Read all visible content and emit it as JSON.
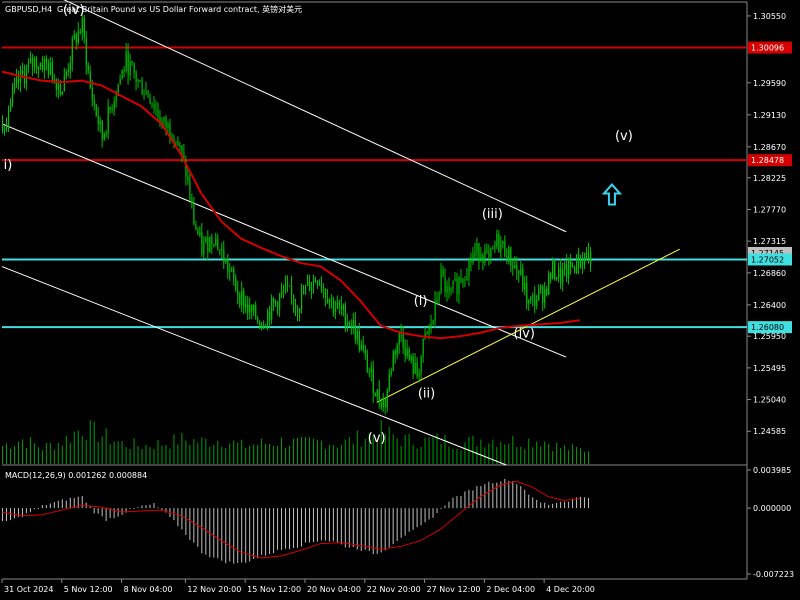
{
  "header": {
    "symbol_label": "GBPUSD,H4",
    "description": "Great Britain Pound vs US Dollar Forward contract, 英镑对美元"
  },
  "colors": {
    "background": "#000000",
    "candle": "#00c000",
    "volume": "#00a000",
    "ma": "#d40000",
    "channel": "#ffffff",
    "trendline": "#ffff40",
    "resistance": "#d40000",
    "support": "#40e0e0",
    "macd_hist": "#c0c0c0",
    "macd_signal": "#d40000",
    "arrow": "#3ad3f0",
    "axis_text": "#ffffff"
  },
  "chart_data": {
    "type": "candlestick",
    "ylim": [
      1.241,
      1.3075
    ],
    "y_ticks": [
      "1.30550",
      "1.29590",
      "1.29130",
      "1.28670",
      "1.28225",
      "1.27770",
      "1.27315",
      "1.26860",
      "1.26400",
      "1.25950",
      "1.25495",
      "1.25040",
      "1.24585"
    ],
    "x_labels": [
      "31 Oct 2024",
      "5 Nov 12:00",
      "8 Nov 04:00",
      "12 Nov 20:00",
      "15 Nov 12:00",
      "20 Nov 04:00",
      "22 Nov 20:00",
      "27 Nov 12:00",
      "2 Dec 04:00",
      "4 Dec 20:00"
    ],
    "close_path": [
      [
        0,
        1.29
      ],
      [
        8,
        1.296
      ],
      [
        16,
        1.299
      ],
      [
        22,
        1.2985
      ],
      [
        30,
        1.295
      ],
      [
        36,
        1.302
      ],
      [
        40,
        1.304
      ],
      [
        44,
        1.295
      ],
      [
        50,
        1.288
      ],
      [
        56,
        1.294
      ],
      [
        62,
        1.299
      ],
      [
        68,
        1.296
      ],
      [
        74,
        1.294
      ],
      [
        80,
        1.29
      ],
      [
        86,
        1.289
      ],
      [
        92,
        1.283
      ],
      [
        96,
        1.276
      ],
      [
        100,
        1.272
      ],
      [
        106,
        1.274
      ],
      [
        112,
        1.27
      ],
      [
        118,
        1.266
      ],
      [
        124,
        1.263
      ],
      [
        130,
        1.2615
      ],
      [
        136,
        1.264
      ],
      [
        142,
        1.266
      ],
      [
        148,
        1.264
      ],
      [
        154,
        1.267
      ],
      [
        158,
        1.268
      ],
      [
        162,
        1.266
      ],
      [
        166,
        1.264
      ],
      [
        170,
        1.263
      ],
      [
        176,
        1.261
      ],
      [
        182,
        1.256
      ],
      [
        188,
        1.251
      ],
      [
        192,
        1.25
      ],
      [
        196,
        1.257
      ],
      [
        200,
        1.26
      ],
      [
        204,
        1.256
      ],
      [
        208,
        1.254
      ],
      [
        212,
        1.259
      ],
      [
        216,
        1.262
      ],
      [
        220,
        1.268
      ],
      [
        224,
        1.265
      ],
      [
        228,
        1.267
      ],
      [
        232,
        1.269
      ],
      [
        236,
        1.271
      ],
      [
        240,
        1.272
      ],
      [
        244,
        1.27
      ],
      [
        248,
        1.273
      ],
      [
        252,
        1.272
      ],
      [
        256,
        1.27
      ],
      [
        260,
        1.268
      ],
      [
        264,
        1.264
      ],
      [
        268,
        1.265
      ],
      [
        272,
        1.266
      ],
      [
        276,
        1.269
      ],
      [
        280,
        1.268
      ],
      [
        284,
        1.269
      ],
      [
        288,
        1.27
      ],
      [
        292,
        1.271
      ]
    ],
    "moving_average": [
      [
        0,
        1.2975
      ],
      [
        10,
        1.2968
      ],
      [
        20,
        1.2962
      ],
      [
        30,
        1.296
      ],
      [
        40,
        1.2962
      ],
      [
        50,
        1.2955
      ],
      [
        60,
        1.294
      ],
      [
        70,
        1.2925
      ],
      [
        80,
        1.29
      ],
      [
        90,
        1.2855
      ],
      [
        100,
        1.28
      ],
      [
        110,
        1.276
      ],
      [
        120,
        1.2735
      ],
      [
        130,
        1.2722
      ],
      [
        140,
        1.271
      ],
      [
        150,
        1.27
      ],
      [
        160,
        1.2695
      ],
      [
        170,
        1.2675
      ],
      [
        180,
        1.2645
      ],
      [
        190,
        1.261
      ],
      [
        200,
        1.26
      ],
      [
        210,
        1.2595
      ],
      [
        220,
        1.2592
      ],
      [
        230,
        1.2595
      ],
      [
        240,
        1.26
      ],
      [
        250,
        1.2607
      ],
      [
        260,
        1.261
      ],
      [
        270,
        1.2612
      ],
      [
        280,
        1.2614
      ],
      [
        290,
        1.2618
      ]
    ],
    "horizontal_levels": [
      {
        "value": 1.30096,
        "label": "1.30096",
        "kind": "resistance"
      },
      {
        "value": 1.28478,
        "label": "1.28478",
        "kind": "resistance"
      },
      {
        "value": 1.27052,
        "label": "1.27052",
        "kind": "support"
      },
      {
        "value": 1.2608,
        "label": "1.26080",
        "kind": "support"
      }
    ],
    "current_price": {
      "value": 1.27145,
      "label": "1.27145"
    },
    "trendlines": [
      {
        "kind": "channel",
        "from": [
          26,
          1.3085
        ],
        "to": [
          283,
          1.2745
        ]
      },
      {
        "kind": "channel",
        "from": [
          0,
          1.29
        ],
        "to": [
          283,
          1.2565
        ]
      },
      {
        "kind": "channel",
        "from": [
          0,
          1.2695
        ],
        "to": [
          253,
          1.241
        ]
      },
      {
        "kind": "trendline",
        "from": [
          188,
          1.25
        ],
        "to": [
          340,
          1.272
        ]
      }
    ],
    "wave_labels": [
      {
        "text": "(iv)",
        "x": 36,
        "y": 1.3058
      },
      {
        "text": "i)",
        "x": 3,
        "y": 1.2835
      },
      {
        "text": "(v)",
        "x": 188,
        "y": 1.2443
      },
      {
        "text": "(i)",
        "x": 210,
        "y": 1.264
      },
      {
        "text": "(ii)",
        "x": 213,
        "y": 1.2507
      },
      {
        "text": "(iii)",
        "x": 246,
        "y": 1.2765
      },
      {
        "text": "(iv)",
        "x": 262,
        "y": 1.2593
      },
      {
        "text": "(v)",
        "x": 312,
        "y": 1.2877
      }
    ],
    "arrow": {
      "direction": "up",
      "x": 306,
      "y": 1.2797
    },
    "macd": {
      "label": "MACD(12,26,9) 0.001262 0.000884",
      "ylim": [
        -0.0074,
        0.0044
      ],
      "y_ticks": [
        "0.003985",
        "0.000000",
        "-0.007223"
      ],
      "histogram": [
        [
          0,
          -0.0015
        ],
        [
          8,
          -0.001
        ],
        [
          16,
          -0.0002
        ],
        [
          22,
          0.0004
        ],
        [
          30,
          0.0008
        ],
        [
          36,
          0.0011
        ],
        [
          40,
          0.0012
        ],
        [
          46,
          -0.0004
        ],
        [
          52,
          -0.0012
        ],
        [
          58,
          -0.0008
        ],
        [
          64,
          -0.0002
        ],
        [
          70,
          0.0002
        ],
        [
          76,
          0.0004
        ],
        [
          82,
          -0.0006
        ],
        [
          88,
          -0.0018
        ],
        [
          94,
          -0.0032
        ],
        [
          100,
          -0.0046
        ],
        [
          106,
          -0.0052
        ],
        [
          112,
          -0.0056
        ],
        [
          118,
          -0.0058
        ],
        [
          124,
          -0.0055
        ],
        [
          130,
          -0.005
        ],
        [
          136,
          -0.0046
        ],
        [
          142,
          -0.0042
        ],
        [
          148,
          -0.004
        ],
        [
          154,
          -0.0036
        ],
        [
          160,
          -0.0033
        ],
        [
          166,
          -0.0035
        ],
        [
          172,
          -0.004
        ],
        [
          178,
          -0.0042
        ],
        [
          184,
          -0.0046
        ],
        [
          188,
          -0.0048
        ],
        [
          194,
          -0.004
        ],
        [
          200,
          -0.003
        ],
        [
          206,
          -0.0024
        ],
        [
          212,
          -0.0016
        ],
        [
          218,
          -0.0005
        ],
        [
          224,
          0.0008
        ],
        [
          230,
          0.0014
        ],
        [
          236,
          0.002
        ],
        [
          242,
          0.0026
        ],
        [
          248,
          0.0028
        ],
        [
          254,
          0.003
        ],
        [
          258,
          0.0026
        ],
        [
          262,
          0.002
        ],
        [
          266,
          0.001
        ],
        [
          270,
          0.0006
        ],
        [
          274,
          0.0004
        ],
        [
          278,
          0.0006
        ],
        [
          284,
          0.0008
        ],
        [
          290,
          0.0012
        ]
      ],
      "signal": [
        [
          0,
          -0.0004
        ],
        [
          10,
          -0.0008
        ],
        [
          20,
          -0.0007
        ],
        [
          30,
          -0.0002
        ],
        [
          40,
          0.0003
        ],
        [
          50,
          0.0001
        ],
        [
          60,
          -0.0004
        ],
        [
          70,
          -0.0003
        ],
        [
          80,
          -0.0002
        ],
        [
          90,
          -0.0008
        ],
        [
          100,
          -0.002
        ],
        [
          110,
          -0.0034
        ],
        [
          120,
          -0.0046
        ],
        [
          130,
          -0.0052
        ],
        [
          140,
          -0.005
        ],
        [
          150,
          -0.0044
        ],
        [
          160,
          -0.0037
        ],
        [
          170,
          -0.0036
        ],
        [
          180,
          -0.0039
        ],
        [
          190,
          -0.0043
        ],
        [
          200,
          -0.004
        ],
        [
          210,
          -0.0034
        ],
        [
          220,
          -0.0022
        ],
        [
          230,
          -0.0005
        ],
        [
          240,
          0.0012
        ],
        [
          250,
          0.0024
        ],
        [
          258,
          0.0028
        ],
        [
          266,
          0.0022
        ],
        [
          274,
          0.0012
        ],
        [
          282,
          0.0008
        ],
        [
          290,
          0.001
        ]
      ]
    },
    "volume": [
      [
        0,
        0.45
      ],
      [
        10,
        0.6
      ],
      [
        20,
        0.4
      ],
      [
        30,
        0.55
      ],
      [
        40,
        0.9
      ],
      [
        50,
        0.7
      ],
      [
        60,
        0.5
      ],
      [
        70,
        0.45
      ],
      [
        80,
        0.5
      ],
      [
        90,
        0.6
      ],
      [
        100,
        0.55
      ],
      [
        110,
        0.6
      ],
      [
        120,
        0.45
      ],
      [
        130,
        0.5
      ],
      [
        140,
        0.55
      ],
      [
        150,
        0.5
      ],
      [
        160,
        0.55
      ],
      [
        170,
        0.5
      ],
      [
        180,
        0.65
      ],
      [
        190,
        0.8
      ],
      [
        200,
        0.6
      ],
      [
        210,
        0.55
      ],
      [
        220,
        0.6
      ],
      [
        230,
        0.5
      ],
      [
        240,
        0.6
      ],
      [
        250,
        0.6
      ],
      [
        260,
        0.55
      ],
      [
        270,
        0.6
      ],
      [
        280,
        0.4
      ],
      [
        290,
        0.35
      ]
    ]
  }
}
